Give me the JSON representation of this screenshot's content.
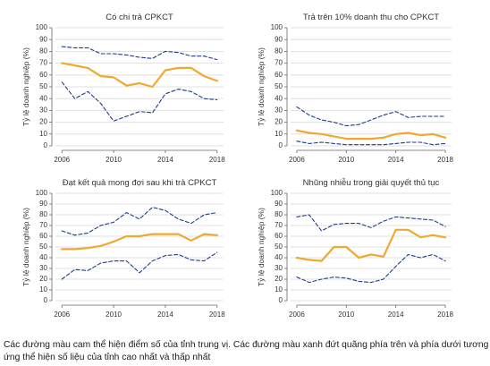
{
  "caption": "Các đường màu cam thể hiện điểm số của tỉnh trung vị. Các đường màu xanh đứt quãng phía trên và phía dưới tương ứng thể hiện số liệu của tỉnh cao nhất và thấp nhất",
  "colors": {
    "median": "#F0A830",
    "bounds": "#1F3D8C",
    "grid": "#d9d9d9",
    "axis": "#666666",
    "text": "#333333"
  },
  "chart_data": [
    {
      "type": "line",
      "title": "Có chi trả CPKCT",
      "ylabel": "Tỷ lệ doanh nghiệp (%)",
      "xlim": [
        2005.5,
        2018.5
      ],
      "ylim": [
        0,
        100
      ],
      "xticks": [
        2006,
        2010,
        2014,
        2018
      ],
      "yticks": [
        0,
        10,
        20,
        30,
        40,
        50,
        60,
        70,
        80,
        90,
        100
      ],
      "x": [
        2006,
        2007,
        2008,
        2009,
        2010,
        2011,
        2012,
        2013,
        2014,
        2015,
        2016,
        2017,
        2018
      ],
      "series": [
        {
          "role": "max",
          "style": "dashed",
          "values": [
            84,
            83,
            83,
            78,
            78,
            77,
            75,
            74,
            80,
            79,
            76,
            76,
            73
          ]
        },
        {
          "role": "median",
          "style": "solid",
          "values": [
            70,
            68,
            66,
            59,
            58,
            51,
            53,
            50,
            64,
            66,
            66,
            59,
            55
          ]
        },
        {
          "role": "min",
          "style": "dashed",
          "values": [
            54,
            40,
            46,
            36,
            21,
            25,
            29,
            28,
            44,
            48,
            46,
            40,
            39
          ]
        }
      ]
    },
    {
      "type": "line",
      "title": "Trả trên 10% doanh thu cho CPKCT",
      "ylabel": "Tỷ lệ doanh nghiệp (%)",
      "xlim": [
        2005.5,
        2018.5
      ],
      "ylim": [
        0,
        100
      ],
      "xticks": [
        2006,
        2010,
        2014,
        2018
      ],
      "yticks": [
        0,
        10,
        20,
        30,
        40,
        50,
        60,
        70,
        80,
        90,
        100
      ],
      "x": [
        2006,
        2007,
        2008,
        2009,
        2010,
        2011,
        2012,
        2013,
        2014,
        2015,
        2016,
        2017,
        2018
      ],
      "series": [
        {
          "role": "max",
          "style": "dashed",
          "values": [
            33,
            26,
            22,
            20,
            17,
            18,
            22,
            26,
            29,
            24,
            25,
            25,
            25
          ]
        },
        {
          "role": "median",
          "style": "solid",
          "values": [
            13,
            11,
            10,
            8,
            6,
            6,
            6,
            7,
            10,
            11,
            9,
            10,
            7
          ]
        },
        {
          "role": "min",
          "style": "dashed",
          "values": [
            4,
            2,
            3,
            2,
            1,
            1,
            1,
            1,
            2,
            3,
            3,
            1,
            2
          ]
        }
      ]
    },
    {
      "type": "line",
      "title": "Đạt kết quả mong đợi sau khi trả CPKCT",
      "ylabel": "Tỷ lệ doanh nghiệp (%)",
      "xlim": [
        2005.5,
        2018.5
      ],
      "ylim": [
        0,
        100
      ],
      "xticks": [
        2006,
        2010,
        2014,
        2018
      ],
      "yticks": [
        0,
        10,
        20,
        30,
        40,
        50,
        60,
        70,
        80,
        90,
        100
      ],
      "x": [
        2006,
        2007,
        2008,
        2009,
        2010,
        2011,
        2012,
        2013,
        2014,
        2015,
        2016,
        2017,
        2018
      ],
      "series": [
        {
          "role": "max",
          "style": "dashed",
          "values": [
            65,
            61,
            63,
            70,
            73,
            82,
            76,
            87,
            84,
            76,
            72,
            80,
            82
          ]
        },
        {
          "role": "median",
          "style": "solid",
          "values": [
            48,
            48,
            49,
            51,
            55,
            60,
            60,
            62,
            62,
            62,
            56,
            62,
            61
          ]
        },
        {
          "role": "min",
          "style": "dashed",
          "values": [
            20,
            29,
            28,
            35,
            37,
            37,
            26,
            37,
            42,
            43,
            38,
            37,
            45
          ]
        }
      ]
    },
    {
      "type": "line",
      "title": "Nhũng nhiễu trong giải quyết thủ tục",
      "ylabel": "Tỷ lệ doanh nghiệp (%)",
      "xlim": [
        2005.5,
        2018.5
      ],
      "ylim": [
        0,
        100
      ],
      "xticks": [
        2006,
        2010,
        2014,
        2018
      ],
      "yticks": [
        0,
        10,
        20,
        30,
        40,
        50,
        60,
        70,
        80,
        90,
        100
      ],
      "x": [
        2006,
        2007,
        2008,
        2009,
        2010,
        2011,
        2012,
        2013,
        2014,
        2015,
        2016,
        2017,
        2018
      ],
      "series": [
        {
          "role": "max",
          "style": "dashed",
          "values": [
            78,
            80,
            65,
            71,
            72,
            72,
            68,
            74,
            78,
            77,
            76,
            75,
            69
          ]
        },
        {
          "role": "median",
          "style": "solid",
          "values": [
            40,
            38,
            37,
            50,
            50,
            40,
            43,
            41,
            66,
            66,
            59,
            61,
            59
          ]
        },
        {
          "role": "min",
          "style": "dashed",
          "values": [
            22,
            17,
            20,
            22,
            21,
            18,
            17,
            20,
            32,
            43,
            40,
            43,
            37
          ]
        }
      ]
    }
  ]
}
